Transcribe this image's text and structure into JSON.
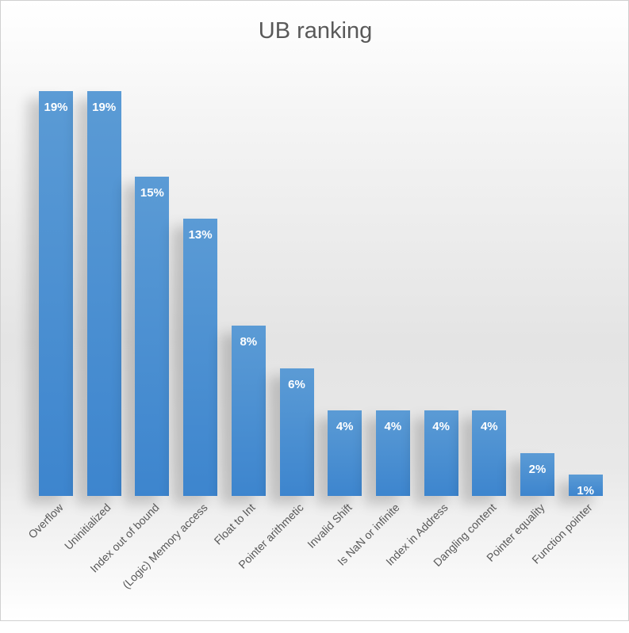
{
  "chart_data": {
    "type": "bar",
    "title": "UB ranking",
    "xlabel": "",
    "ylabel": "",
    "categories": [
      "Overflow",
      "Uninitialized",
      "Index out of bound",
      "(Logic) Memory access",
      "Float to Int",
      "Pointer arithmetic",
      "Invalid Shift",
      "Is NaN or infinite",
      "Index in Address",
      "Dangling content",
      "Pointer equality",
      "Function pointer"
    ],
    "values": [
      19,
      19,
      15,
      13,
      8,
      6,
      4,
      4,
      4,
      4,
      2,
      1
    ],
    "value_labels": [
      "19%",
      "19%",
      "15%",
      "13%",
      "8%",
      "6%",
      "4%",
      "4%",
      "4%",
      "4%",
      "2%",
      "1%"
    ],
    "unit": "%",
    "grid": false,
    "legend": "none",
    "data_labels": "inside-end",
    "bar_color": "#4a8fd3"
  }
}
